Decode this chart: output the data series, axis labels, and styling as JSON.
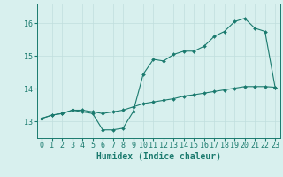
{
  "title": "",
  "xlabel": "Humidex (Indice chaleur)",
  "background_color": "#d8f0ee",
  "line_color": "#1a7a6e",
  "grid_color": "#c0dedd",
  "xlim": [
    -0.5,
    23.5
  ],
  "ylim": [
    12.5,
    16.6
  ],
  "yticks": [
    13,
    14,
    15,
    16
  ],
  "xticks": [
    0,
    1,
    2,
    3,
    4,
    5,
    6,
    7,
    8,
    9,
    10,
    11,
    12,
    13,
    14,
    15,
    16,
    17,
    18,
    19,
    20,
    21,
    22,
    23
  ],
  "line1_x": [
    0,
    1,
    2,
    3,
    4,
    5,
    6,
    7,
    8,
    9,
    10,
    11,
    12,
    13,
    14,
    15,
    16,
    17,
    18,
    19,
    20,
    21,
    22,
    23
  ],
  "line1_y": [
    13.1,
    13.2,
    13.25,
    13.35,
    13.3,
    13.25,
    12.75,
    12.75,
    12.8,
    13.3,
    14.45,
    14.9,
    14.85,
    15.05,
    15.15,
    15.15,
    15.3,
    15.6,
    15.75,
    16.05,
    16.15,
    15.85,
    15.75,
    14.05
  ],
  "line2_x": [
    0,
    1,
    2,
    3,
    4,
    5,
    6,
    7,
    8,
    9,
    10,
    11,
    12,
    13,
    14,
    15,
    16,
    17,
    18,
    19,
    20,
    21,
    22,
    23
  ],
  "line2_y": [
    13.1,
    13.2,
    13.25,
    13.35,
    13.35,
    13.3,
    13.25,
    13.3,
    13.35,
    13.45,
    13.55,
    13.6,
    13.65,
    13.7,
    13.78,
    13.82,
    13.87,
    13.92,
    13.97,
    14.02,
    14.07,
    14.07,
    14.07,
    14.05
  ],
  "marker": "D",
  "markersize": 2.0,
  "linewidth": 0.8,
  "xlabel_fontsize": 7,
  "tick_fontsize": 6
}
